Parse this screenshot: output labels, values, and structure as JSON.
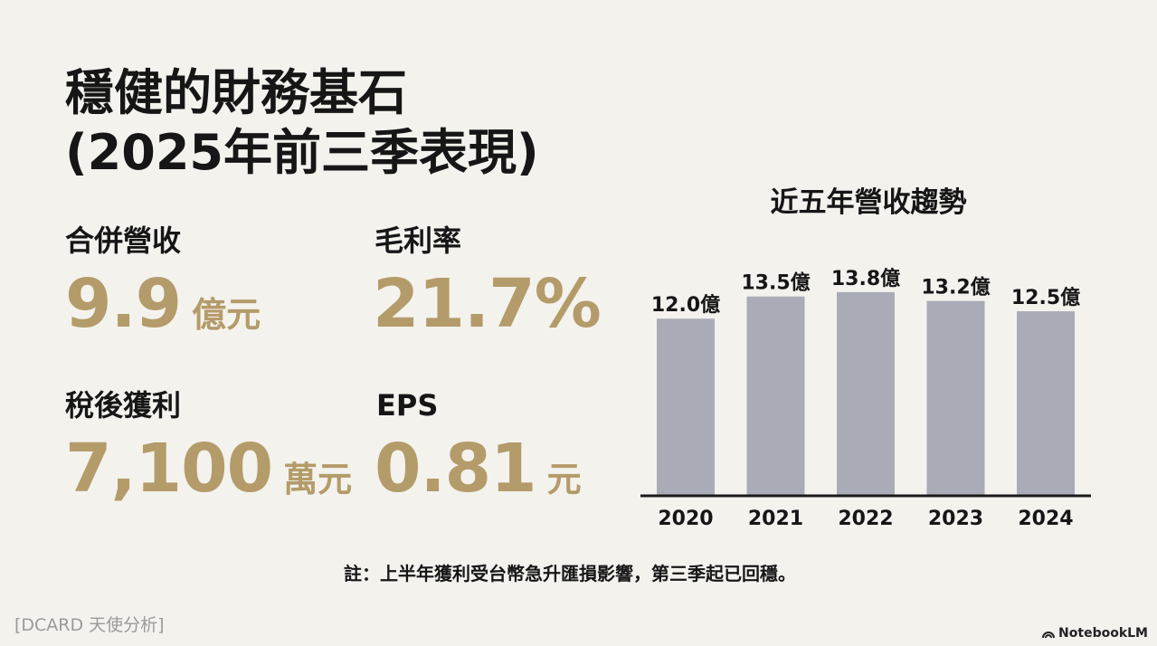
{
  "title": {
    "line1": "穩健的財務基石",
    "line2": "(2025年前三季表現)"
  },
  "metrics": [
    {
      "label": "合併營收",
      "value": "9.9",
      "unit": "億元"
    },
    {
      "label": "毛利率",
      "value": "21.7%",
      "unit": ""
    },
    {
      "label": "稅後獲利",
      "value": "7,100",
      "unit": "萬元"
    },
    {
      "label": "EPS",
      "value": "0.81",
      "unit": "元"
    }
  ],
  "colors": {
    "accent": "#b49b6a",
    "bar": "#a9abb6",
    "background": "#f3f2ed"
  },
  "chart_data": {
    "type": "bar",
    "title": "近五年營收趨勢",
    "categories": [
      "2020",
      "2021",
      "2022",
      "2023",
      "2024"
    ],
    "values": [
      12.0,
      13.5,
      13.8,
      13.2,
      12.5
    ],
    "value_labels": [
      "12.0億",
      "13.5億",
      "13.8億",
      "13.2億",
      "12.5億"
    ],
    "ylim": [
      0,
      15.2
    ],
    "xlabel": "",
    "ylabel": "",
    "grid": false
  },
  "note": "註：上半年獲利受台幣急升匯損影響，第三季起已回穩。",
  "source": "[DCARD 天使分析]",
  "brand": "NotebookLM",
  "brand_icon": "notebooklm-logo-icon"
}
